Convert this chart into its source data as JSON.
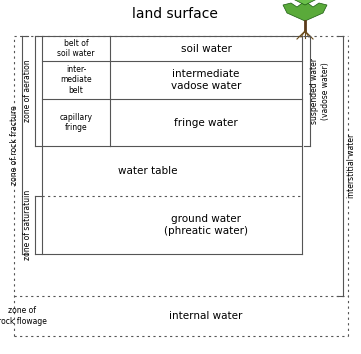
{
  "title": "land surface",
  "bg_color": "#ffffff",
  "fig_width": 3.61,
  "fig_height": 3.54,
  "dpi": 100,
  "zones": {
    "zone_of_rock_fracture": "zone of rock fracture",
    "zone_of_aeration": "zone of aeration",
    "zone_of_saturatin": "zone of saturatuin",
    "zone_of_rock_flowage": "zone of\nrock flowage",
    "belt_of_soil_water": "belt of\nsoil water",
    "intermediate_belt": "inter-\nmediate\nbelt",
    "capillary_fringe": "capillary\nfringe",
    "suspended_water": "suspended water\n(vadose water)",
    "interstitial_water": "interstitial water"
  },
  "labels": {
    "soil_water": "soil water",
    "intermediate_vadose": "intermediate\nvadose water",
    "fringe_water": "fringe water",
    "water_table": "water table",
    "ground_water": "ground water\n(phreatic water)",
    "internal_water": "internal water"
  },
  "colors": {
    "line": "#555555",
    "text": "#000000",
    "tree_trunk": "#5a3a1a",
    "tree_root": "#6b4c1a",
    "leaf1": "#3a8a2a",
    "leaf2": "#4aaa3a",
    "leaf_edge": "#1a5a10"
  }
}
